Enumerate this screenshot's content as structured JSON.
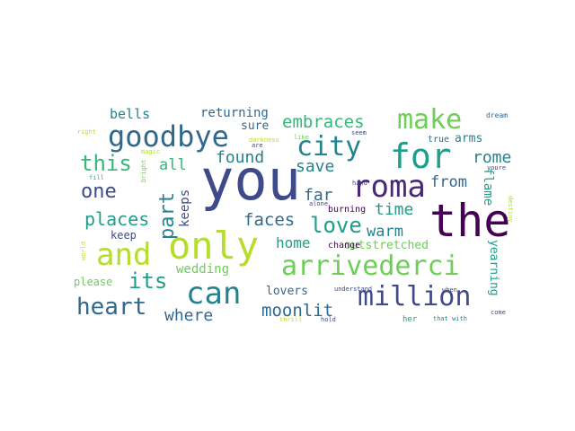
{
  "words": {
    "you": "you",
    "the": "the",
    "only": "only",
    "for": "for",
    "roma": "roma",
    "arrivederci": "arrivederci",
    "million": "million",
    "goodbye": "goodbye",
    "and": "and",
    "can": "can",
    "city": "city",
    "make": "make",
    "heart": "heart",
    "love": "love",
    "its": "its",
    "this": "this",
    "one": "one",
    "part": "part",
    "found": "found",
    "places": "places",
    "embraces": "embraces",
    "faces": "faces",
    "moonlit": "moonlit",
    "save": "save",
    "far": "far",
    "time": "time",
    "from": "from",
    "rome": "rome",
    "where": "where",
    "warm": "warm",
    "home": "home",
    "all": "all",
    "bells": "bells",
    "returning": "returning",
    "keeps": "keeps",
    "wedding": "wedding",
    "outstretched": "outstretched",
    "arms": "arms",
    "sure": "sure",
    "flame": "flame",
    "yearning": "yearning",
    "lovers": "lovers",
    "keep": "keep",
    "please": "please",
    "true": "true",
    "burning": "burning",
    "change": "change",
    "dream": "dream",
    "right": "right",
    "magic": "magic",
    "fill": "fill",
    "bright": "bright",
    "darkness": "darkness",
    "are": "are",
    "like": "like",
    "seem": "seem",
    "hand": "hand",
    "youre": "youre",
    "destiny": "destiny",
    "alone": "alone",
    "world": "world",
    "understand": "understand",
    "when": "when",
    "come": "come",
    "thrill": "thrill",
    "hold": "hold",
    "her": "her",
    "that_with": "that with"
  },
  "colors": {
    "dark_purple": "#440154",
    "indigo": "#482878",
    "blue_purple": "#3e4a89",
    "steel_blue": "#31688e",
    "teal": "#26828e",
    "sea_green": "#1f9e89",
    "green": "#35b779",
    "lime": "#6ece58",
    "yellow_green": "#b5de2b",
    "yellow": "#fde725"
  }
}
